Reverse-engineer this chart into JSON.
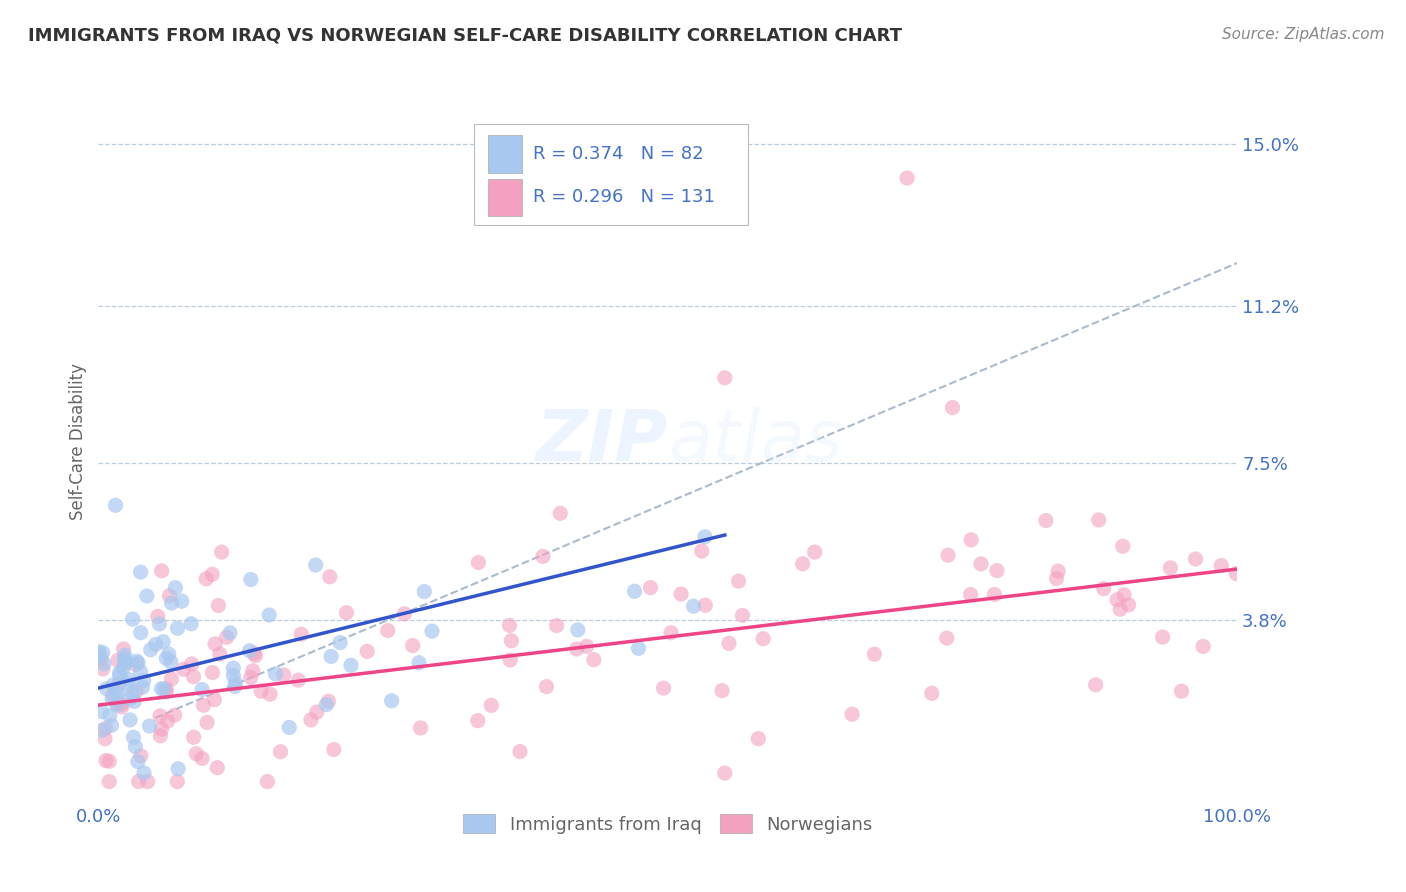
{
  "title": "IMMIGRANTS FROM IRAQ VS NORWEGIAN SELF-CARE DISABILITY CORRELATION CHART",
  "source": "Source: ZipAtlas.com",
  "ylabel": "Self-Care Disability",
  "xlim": [
    0,
    100
  ],
  "ylim": [
    -0.5,
    16.5
  ],
  "yticks": [
    3.8,
    7.5,
    11.2,
    15.0
  ],
  "ytick_labels": [
    "3.8%",
    "7.5%",
    "11.2%",
    "15.0%"
  ],
  "xtick_labels": [
    "0.0%",
    "100.0%"
  ],
  "legend_r1": "R = 0.374",
  "legend_n1": "N = 82",
  "legend_r2": "R = 0.296",
  "legend_n2": "N = 131",
  "legend_label1": "Immigrants from Iraq",
  "legend_label2": "Norwegians",
  "color_iraq": "#A8C8F0",
  "color_norway": "#F4A0C0",
  "color_trendline_iraq": "#3355CC",
  "color_trendline_norway": "#EE4488",
  "color_dashed": "#AABBCC",
  "background": "#FFFFFF",
  "grid_color": "#BBCCDD",
  "title_color": "#333333",
  "axis_label_color": "#4472C4",
  "tick_color": "#4472C4",
  "watermark_color": "#CCDDEEFF",
  "iraq_trend_x": [
    0,
    55
  ],
  "iraq_trend_y": [
    2.2,
    5.8
  ],
  "norway_trend_x": [
    0,
    100
  ],
  "norway_trend_y": [
    1.8,
    5.0
  ],
  "dashed_trend_x": [
    5,
    100
  ],
  "dashed_trend_y": [
    1.5,
    12.2
  ]
}
